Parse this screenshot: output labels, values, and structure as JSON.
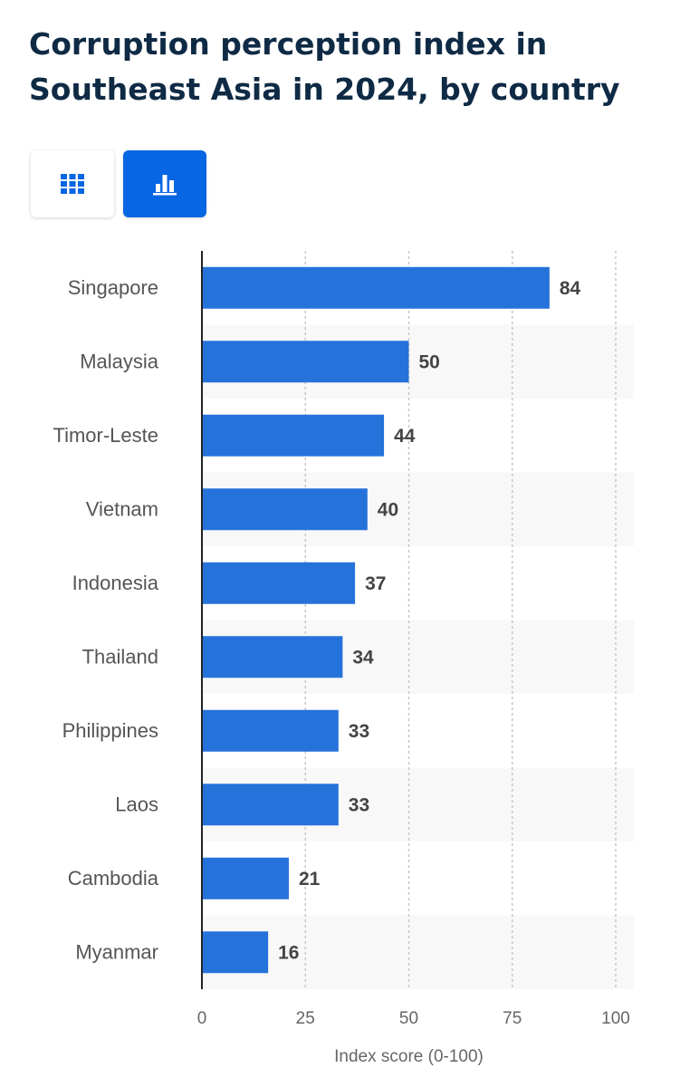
{
  "header": {
    "title": "Corruption perception index in Southeast Asia in 2024, by country"
  },
  "view_toggle": {
    "table_icon": "grid-table-icon",
    "chart_icon": "bar-chart-icon",
    "active": "chart"
  },
  "colors": {
    "bar": "#2672db",
    "accent": "#0766e3",
    "title": "#0f2a44"
  },
  "chart_data": {
    "type": "bar",
    "orientation": "horizontal",
    "categories": [
      "Singapore",
      "Malaysia",
      "Timor-Leste",
      "Vietnam",
      "Indonesia",
      "Thailand",
      "Philippines",
      "Laos",
      "Cambodia",
      "Myanmar"
    ],
    "values": [
      84,
      50,
      44,
      40,
      37,
      34,
      33,
      33,
      21,
      16
    ],
    "xlabel": "Index score (0-100)",
    "ylabel": "",
    "xlim": [
      0,
      100
    ],
    "xticks": [
      0,
      25,
      50,
      75,
      100
    ],
    "grid": true,
    "data_labels": true
  }
}
